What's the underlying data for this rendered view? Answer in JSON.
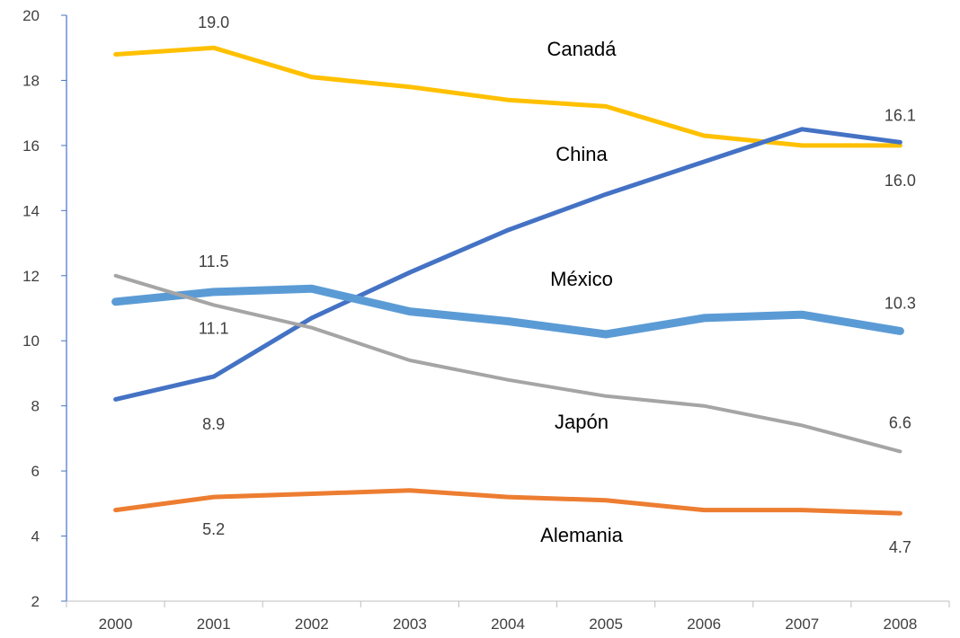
{
  "chart_data": {
    "type": "line",
    "title": "",
    "xlabel": "",
    "ylabel": "",
    "x": [
      "2000",
      "2001",
      "2002",
      "2003",
      "2004",
      "2005",
      "2006",
      "2007",
      "2008"
    ],
    "ylim": [
      2,
      20
    ],
    "yticks": [
      "2",
      "4",
      "6",
      "8",
      "10",
      "12",
      "14",
      "16",
      "18",
      "20"
    ],
    "grid": false,
    "legend": "none",
    "series": [
      {
        "name": "Canadá",
        "color": "#FFC000",
        "width": "medium",
        "values": [
          18.8,
          19.0,
          18.1,
          17.8,
          17.4,
          17.2,
          16.3,
          16.0,
          16.0
        ]
      },
      {
        "name": "China",
        "color": "#4472C4",
        "width": "medium",
        "values": [
          8.2,
          8.9,
          10.7,
          12.1,
          13.4,
          14.5,
          15.5,
          16.5,
          16.1
        ]
      },
      {
        "name": "México",
        "color": "#5B9BD5",
        "width": "thick",
        "values": [
          11.2,
          11.5,
          11.6,
          10.9,
          10.6,
          10.2,
          10.7,
          10.8,
          10.3
        ]
      },
      {
        "name": "Japón",
        "color": "#A5A5A5",
        "width": "thin",
        "values": [
          12.0,
          11.1,
          10.4,
          9.4,
          8.8,
          8.3,
          8.0,
          7.4,
          6.6
        ]
      },
      {
        "name": "Alemania",
        "color": "#ED7D31",
        "width": "medium",
        "values": [
          4.8,
          5.2,
          5.3,
          5.4,
          5.2,
          5.1,
          4.8,
          4.8,
          4.7
        ]
      }
    ],
    "annotations": [
      {
        "text": "19.0",
        "series": "Canadá",
        "at": "2001"
      },
      {
        "text": "11.5",
        "series": "México",
        "at": "2001"
      },
      {
        "text": "11.1",
        "series": "Japón",
        "at": "2001"
      },
      {
        "text": "8.9",
        "series": "China",
        "at": "2001"
      },
      {
        "text": "5.2",
        "series": "Alemania",
        "at": "2001"
      },
      {
        "text": "16.1",
        "series": "China",
        "at": "2008"
      },
      {
        "text": "16.0",
        "series": "Canadá",
        "at": "2008"
      },
      {
        "text": "10.3",
        "series": "México",
        "at": "2008"
      },
      {
        "text": "6.6",
        "series": "Japón",
        "at": "2008"
      },
      {
        "text": "4.7",
        "series": "Alemania",
        "at": "2008"
      }
    ],
    "series_labels": [
      "Canadá",
      "China",
      "México",
      "Japón",
      "Alemania"
    ]
  }
}
